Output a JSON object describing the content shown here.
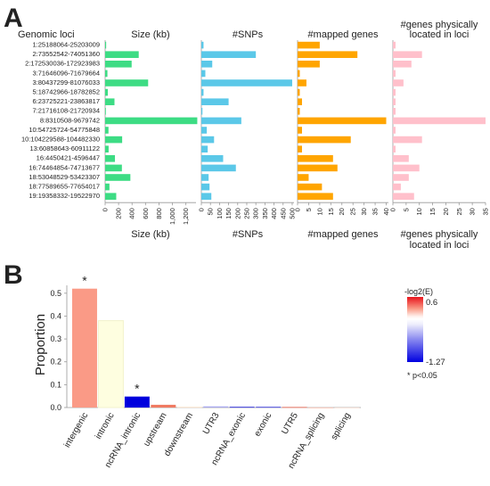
{
  "panel_a": {
    "letter": "A",
    "loci_header": "Genomic loci",
    "loci": [
      "1:25188064-25203009",
      "2:73552542-74051360",
      "2:172530036-172923983",
      "3:71646096-71679664",
      "3:80437299-81076033",
      "5:18742966-18782852",
      "6:23725221-23863817",
      "7:21716108-21720934",
      "8:8310508-9679742",
      "10:54725724-54775848",
      "10:104229588-104482330",
      "13:60858643-60911122",
      "16:4450421-4596447",
      "16:74464854-74713677",
      "18:53048529-53423307",
      "18:77589655-77654017",
      "19:19358332-19522970"
    ]
  },
  "panel_b": {
    "letter": "B",
    "legend_title": "-log2(E)",
    "legend_max": "0.6",
    "legend_min": "-1.27",
    "note": "* p<0.05"
  },
  "chart_data": [
    {
      "type": "bar",
      "orientation": "horizontal",
      "title": "Size (kb)",
      "xlabel": "Size (kb)",
      "color": "#3ddc84",
      "xlim": [
        0,
        1350
      ],
      "ticks": [
        "0",
        "200",
        "400",
        "600",
        "800",
        "1,000",
        "1,200"
      ],
      "tick_values": [
        0,
        200,
        400,
        600,
        800,
        1000,
        1200
      ],
      "values": [
        15,
        499,
        394,
        34,
        639,
        40,
        139,
        5,
        1369,
        50,
        253,
        52,
        146,
        249,
        375,
        64,
        165
      ]
    },
    {
      "type": "bar",
      "orientation": "horizontal",
      "title": "#SNPs",
      "xlabel": "#SNPs",
      "color": "#5bc8e8",
      "xlim": [
        0,
        510
      ],
      "ticks": [
        "0",
        "50",
        "100",
        "150",
        "200",
        "250",
        "300",
        "350",
        "400",
        "450",
        "500"
      ],
      "tick_values": [
        0,
        50,
        100,
        150,
        200,
        250,
        300,
        350,
        400,
        450,
        500
      ],
      "values": [
        12,
        300,
        60,
        22,
        500,
        12,
        150,
        6,
        220,
        30,
        70,
        35,
        120,
        190,
        40,
        45,
        55
      ]
    },
    {
      "type": "bar",
      "orientation": "horizontal",
      "title": "#mapped genes",
      "xlabel": "#mapped genes",
      "color": "#ffa500",
      "xlim": [
        0,
        41
      ],
      "ticks": [
        "0",
        "5",
        "10",
        "15",
        "20",
        "25",
        "30",
        "35",
        "40"
      ],
      "tick_values": [
        0,
        5,
        10,
        15,
        20,
        25,
        30,
        35,
        40
      ],
      "values": [
        10,
        27,
        10,
        1,
        4,
        1,
        2,
        1,
        40,
        2,
        24,
        2,
        16,
        18,
        5,
        11,
        16
      ]
    },
    {
      "type": "bar",
      "orientation": "horizontal",
      "title": "#genes physically located in loci",
      "xlabel": "#genes physically located in loci",
      "color": "#ffc0cb",
      "xlim": [
        0,
        35
      ],
      "ticks": [
        "0",
        "5",
        "10",
        "15",
        "20",
        "25",
        "30",
        "35"
      ],
      "tick_values": [
        0,
        5,
        10,
        15,
        20,
        25,
        30,
        35
      ],
      "values": [
        1,
        11,
        7,
        1,
        4,
        1,
        1,
        1,
        35,
        1,
        11,
        1,
        6,
        10,
        6,
        3,
        8
      ]
    },
    {
      "type": "bar",
      "ylabel": "Proportion",
      "ylim": [
        0,
        0.55
      ],
      "yticks": [
        "0.0",
        "0.1",
        "0.2",
        "0.3",
        "0.4",
        "0.5"
      ],
      "ytick_values": [
        0,
        0.1,
        0.2,
        0.3,
        0.4,
        0.5
      ],
      "categories": [
        "intergenic",
        "intronic",
        "ncRNA_intronic",
        "upstream",
        "downstream",
        "UTR3",
        "ncRNA_exonic",
        "exonic",
        "UTR5",
        "ncRNA_splicing",
        "splicing"
      ],
      "values": [
        0.52,
        0.38,
        0.048,
        0.012,
        0.004,
        0.005,
        0.004,
        0.004,
        0.003,
        0.0005,
        0.0002
      ],
      "colors": [
        "#fa9a86",
        "#fefee0",
        "#0000dd",
        "#ef7a62",
        "#ffecd8",
        "#a8a8f0",
        "#5858e0",
        "#6a6ae4",
        "#e88a7a",
        "#fcd0c4",
        "#fee8e0"
      ],
      "significant": [
        "*",
        "",
        "*",
        "",
        "",
        "",
        "",
        "",
        "",
        "",
        ""
      ]
    }
  ]
}
